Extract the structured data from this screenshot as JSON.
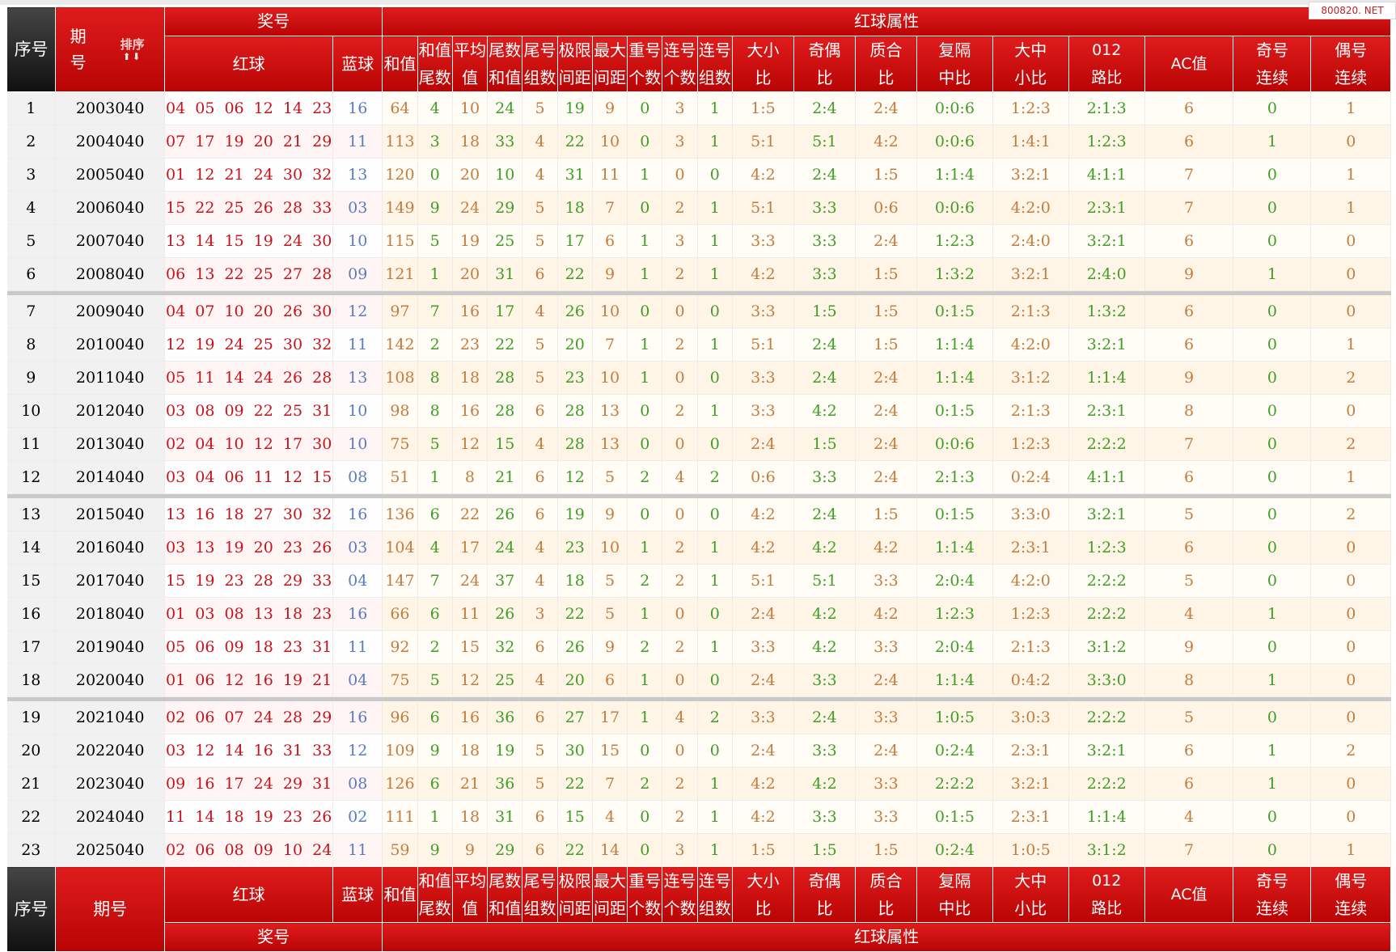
{
  "watermark": "800820. NET",
  "header": {
    "seq": "序号",
    "period_top": "期",
    "period_bottom": "号",
    "period": "期号",
    "sort_label": "排序",
    "sort_arrows": "⬆⬇",
    "prize": "奖号",
    "red": "红球",
    "blue": "蓝球",
    "attrs": "红球属性",
    "cols": [
      [
        "和值",
        ""
      ],
      [
        "和值",
        "尾数"
      ],
      [
        "平均",
        "值"
      ],
      [
        "尾数",
        "和值"
      ],
      [
        "尾号",
        "组数"
      ],
      [
        "极限",
        "间距"
      ],
      [
        "最大",
        "间距"
      ],
      [
        "重号",
        "个数"
      ],
      [
        "连号",
        "个数"
      ],
      [
        "连号",
        "组数"
      ],
      [
        "大小",
        "比"
      ],
      [
        "奇偶",
        "比"
      ],
      [
        "质合",
        "比"
      ],
      [
        "复隔",
        "中比"
      ],
      [
        "大中",
        "小比"
      ],
      [
        "012",
        "路比"
      ],
      [
        "AC值",
        ""
      ],
      [
        "奇号",
        "连续"
      ],
      [
        "偶号",
        "连续"
      ]
    ]
  },
  "rows": [
    [
      "1",
      "2003040",
      "04 05 06 12 14 23",
      "16",
      "64",
      "4",
      "10",
      "24",
      "5",
      "19",
      "9",
      "0",
      "3",
      "1",
      "1:5",
      "2:4",
      "2:4",
      "0:0:6",
      "1:2:3",
      "2:1:3",
      "6",
      "0",
      "1"
    ],
    [
      "2",
      "2004040",
      "07 17 19 20 21 29",
      "11",
      "113",
      "3",
      "18",
      "33",
      "4",
      "22",
      "10",
      "0",
      "3",
      "1",
      "5:1",
      "5:1",
      "4:2",
      "0:0:6",
      "1:4:1",
      "1:2:3",
      "6",
      "1",
      "0"
    ],
    [
      "3",
      "2005040",
      "01 12 21 24 30 32",
      "13",
      "120",
      "0",
      "20",
      "10",
      "4",
      "31",
      "11",
      "1",
      "0",
      "0",
      "4:2",
      "2:4",
      "1:5",
      "1:1:4",
      "3:2:1",
      "4:1:1",
      "7",
      "0",
      "1"
    ],
    [
      "4",
      "2006040",
      "15 22 25 26 28 33",
      "03",
      "149",
      "9",
      "24",
      "29",
      "5",
      "18",
      "7",
      "0",
      "2",
      "1",
      "5:1",
      "3:3",
      "0:6",
      "0:0:6",
      "4:2:0",
      "2:3:1",
      "7",
      "0",
      "1"
    ],
    [
      "5",
      "2007040",
      "13 14 15 19 24 30",
      "10",
      "115",
      "5",
      "19",
      "25",
      "5",
      "17",
      "6",
      "1",
      "3",
      "1",
      "3:3",
      "3:3",
      "2:4",
      "1:2:3",
      "2:4:0",
      "3:2:1",
      "6",
      "0",
      "0"
    ],
    [
      "6",
      "2008040",
      "06 13 22 25 27 28",
      "09",
      "121",
      "1",
      "20",
      "31",
      "6",
      "22",
      "9",
      "1",
      "2",
      "1",
      "4:2",
      "3:3",
      "1:5",
      "1:3:2",
      "3:2:1",
      "2:4:0",
      "9",
      "1",
      "0"
    ],
    [
      "7",
      "2009040",
      "04 07 10 20 26 30",
      "12",
      "97",
      "7",
      "16",
      "17",
      "4",
      "26",
      "10",
      "0",
      "0",
      "0",
      "3:3",
      "1:5",
      "1:5",
      "0:1:5",
      "2:1:3",
      "1:3:2",
      "6",
      "0",
      "0"
    ],
    [
      "8",
      "2010040",
      "12 19 24 25 30 32",
      "11",
      "142",
      "2",
      "23",
      "22",
      "5",
      "20",
      "7",
      "1",
      "2",
      "1",
      "5:1",
      "2:4",
      "1:5",
      "1:1:4",
      "4:2:0",
      "3:2:1",
      "6",
      "0",
      "1"
    ],
    [
      "9",
      "2011040",
      "05 11 14 24 26 28",
      "13",
      "108",
      "8",
      "18",
      "28",
      "5",
      "23",
      "10",
      "1",
      "0",
      "0",
      "3:3",
      "2:4",
      "2:4",
      "1:1:4",
      "3:1:2",
      "1:1:4",
      "9",
      "0",
      "2"
    ],
    [
      "10",
      "2012040",
      "03 08 09 22 25 31",
      "10",
      "98",
      "8",
      "16",
      "28",
      "6",
      "28",
      "13",
      "0",
      "2",
      "1",
      "3:3",
      "4:2",
      "2:4",
      "0:1:5",
      "2:1:3",
      "2:3:1",
      "8",
      "0",
      "0"
    ],
    [
      "11",
      "2013040",
      "02 04 10 12 17 30",
      "10",
      "75",
      "5",
      "12",
      "15",
      "4",
      "28",
      "13",
      "0",
      "0",
      "0",
      "2:4",
      "1:5",
      "2:4",
      "0:0:6",
      "1:2:3",
      "2:2:2",
      "7",
      "0",
      "2"
    ],
    [
      "12",
      "2014040",
      "03 04 06 11 12 15",
      "08",
      "51",
      "1",
      "8",
      "21",
      "6",
      "12",
      "5",
      "2",
      "4",
      "2",
      "0:6",
      "3:3",
      "2:4",
      "2:1:3",
      "0:2:4",
      "4:1:1",
      "6",
      "0",
      "1"
    ],
    [
      "13",
      "2015040",
      "13 16 18 27 30 32",
      "16",
      "136",
      "6",
      "22",
      "26",
      "6",
      "19",
      "9",
      "0",
      "0",
      "0",
      "4:2",
      "2:4",
      "1:5",
      "0:1:5",
      "3:3:0",
      "3:2:1",
      "5",
      "0",
      "2"
    ],
    [
      "14",
      "2016040",
      "03 13 19 20 23 26",
      "03",
      "104",
      "4",
      "17",
      "24",
      "4",
      "23",
      "10",
      "1",
      "2",
      "1",
      "4:2",
      "4:2",
      "4:2",
      "1:1:4",
      "2:3:1",
      "1:2:3",
      "6",
      "0",
      "0"
    ],
    [
      "15",
      "2017040",
      "15 19 23 28 29 33",
      "04",
      "147",
      "7",
      "24",
      "37",
      "4",
      "18",
      "5",
      "2",
      "2",
      "1",
      "5:1",
      "5:1",
      "3:3",
      "2:0:4",
      "4:2:0",
      "2:2:2",
      "5",
      "0",
      "0"
    ],
    [
      "16",
      "2018040",
      "01 03 08 13 18 23",
      "16",
      "66",
      "6",
      "11",
      "26",
      "3",
      "22",
      "5",
      "1",
      "0",
      "0",
      "2:4",
      "4:2",
      "4:2",
      "1:2:3",
      "1:2:3",
      "2:2:2",
      "4",
      "1",
      "0"
    ],
    [
      "17",
      "2019040",
      "05 06 09 18 23 31",
      "11",
      "92",
      "2",
      "15",
      "32",
      "6",
      "26",
      "9",
      "2",
      "2",
      "1",
      "3:3",
      "4:2",
      "3:3",
      "2:0:4",
      "2:1:3",
      "3:1:2",
      "9",
      "0",
      "0"
    ],
    [
      "18",
      "2020040",
      "01 06 12 16 19 21",
      "04",
      "75",
      "5",
      "12",
      "25",
      "4",
      "20",
      "6",
      "1",
      "0",
      "0",
      "2:4",
      "3:3",
      "2:4",
      "1:1:4",
      "0:4:2",
      "3:3:0",
      "8",
      "1",
      "0"
    ],
    [
      "19",
      "2021040",
      "02 06 07 24 28 29",
      "16",
      "96",
      "6",
      "16",
      "36",
      "6",
      "27",
      "17",
      "1",
      "4",
      "2",
      "3:3",
      "2:4",
      "3:3",
      "1:0:5",
      "3:0:3",
      "2:2:2",
      "5",
      "0",
      "0"
    ],
    [
      "20",
      "2022040",
      "03 12 14 16 31 33",
      "12",
      "109",
      "9",
      "18",
      "19",
      "5",
      "30",
      "15",
      "0",
      "0",
      "0",
      "2:4",
      "3:3",
      "2:4",
      "0:2:4",
      "2:3:1",
      "3:2:1",
      "6",
      "1",
      "2"
    ],
    [
      "21",
      "2023040",
      "09 16 17 24 29 31",
      "08",
      "126",
      "6",
      "21",
      "36",
      "5",
      "22",
      "7",
      "2",
      "2",
      "1",
      "4:2",
      "4:2",
      "3:3",
      "2:2:2",
      "3:2:1",
      "2:2:2",
      "6",
      "1",
      "0"
    ],
    [
      "22",
      "2024040",
      "11 14 18 19 23 26",
      "02",
      "111",
      "1",
      "18",
      "31",
      "6",
      "15",
      "4",
      "0",
      "2",
      "1",
      "4:2",
      "3:3",
      "3:3",
      "0:1:5",
      "2:3:1",
      "1:1:4",
      "4",
      "0",
      "0"
    ],
    [
      "23",
      "2025040",
      "02 06 08 09 10 24",
      "11",
      "59",
      "9",
      "9",
      "29",
      "6",
      "22",
      "14",
      "0",
      "3",
      "1",
      "1:5",
      "1:5",
      "1:5",
      "0:2:4",
      "1:0:5",
      "3:1:2",
      "7",
      "0",
      "1"
    ]
  ]
}
